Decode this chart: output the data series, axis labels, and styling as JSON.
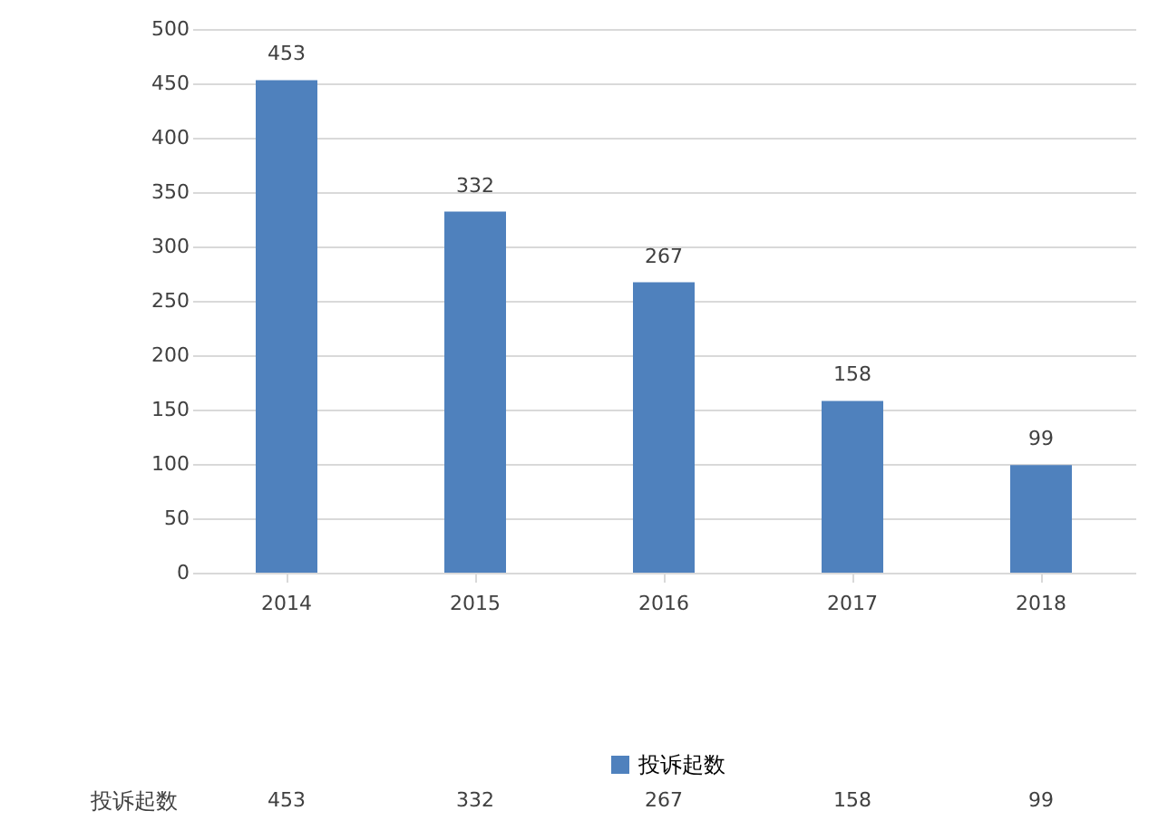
{
  "chart_data": {
    "type": "bar",
    "categories": [
      "2014",
      "2015",
      "2016",
      "2017",
      "2018"
    ],
    "series": [
      {
        "name": "投诉起数",
        "color": "#4f81bd",
        "values": [
          453,
          332,
          267,
          158,
          99
        ],
        "value_labels": [
          "453",
          "332",
          "267",
          "158",
          "99"
        ]
      }
    ],
    "ylim": [
      0,
      500
    ],
    "yticks": [
      0,
      50,
      100,
      150,
      200,
      250,
      300,
      350,
      400,
      450,
      500
    ],
    "grid": "y",
    "legend": "bottom",
    "annotations": [
      "453",
      "332",
      "267",
      "158",
      "99"
    ]
  }
}
